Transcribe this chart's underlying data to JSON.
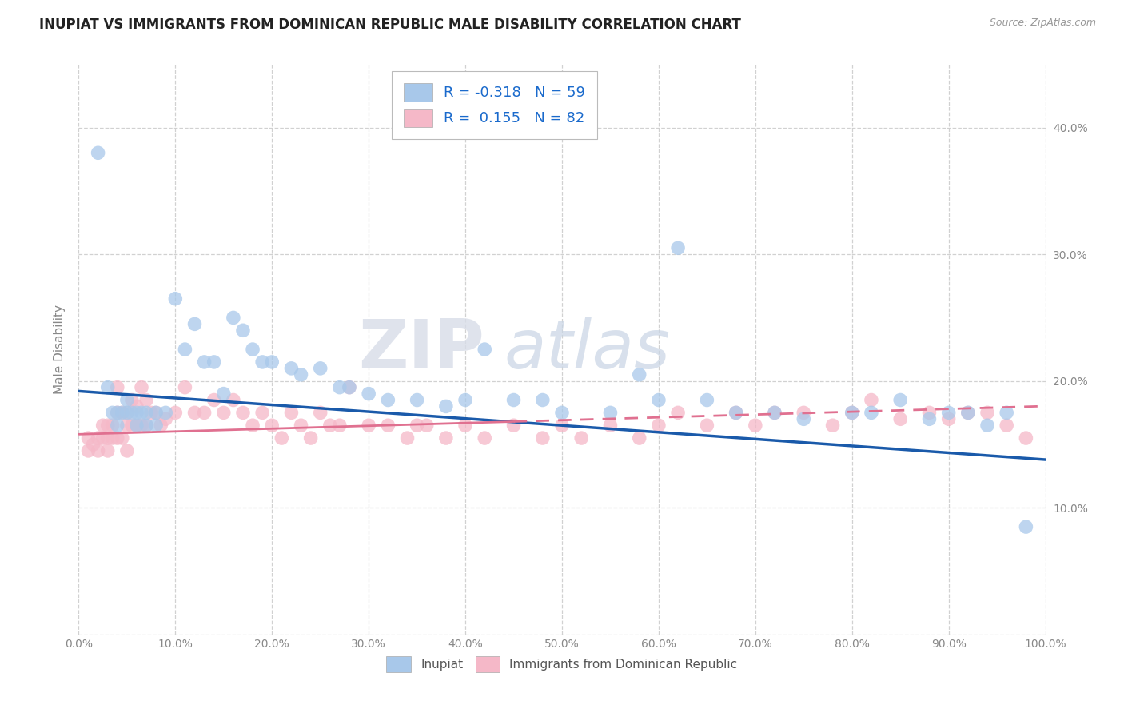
{
  "title": "INUPIAT VS IMMIGRANTS FROM DOMINICAN REPUBLIC MALE DISABILITY CORRELATION CHART",
  "source": "Source: ZipAtlas.com",
  "ylabel": "Male Disability",
  "legend_labels": [
    "Inupiat",
    "Immigrants from Dominican Republic"
  ],
  "blue_R": -0.318,
  "blue_N": 59,
  "pink_R": 0.155,
  "pink_N": 82,
  "blue_color": "#a8c8ea",
  "pink_color": "#f5b8c8",
  "blue_line_color": "#1a5aaa",
  "pink_line_color": "#e07090",
  "text_color_blue": "#1a6acc",
  "text_color_dark": "#333333",
  "xlim": [
    0.0,
    1.0
  ],
  "ylim": [
    0.0,
    0.45
  ],
  "xticks": [
    0.0,
    0.1,
    0.2,
    0.3,
    0.4,
    0.5,
    0.6,
    0.7,
    0.8,
    0.9,
    1.0
  ],
  "yticks": [
    0.0,
    0.1,
    0.2,
    0.3,
    0.4
  ],
  "ytick_labels": [
    "",
    "10.0%",
    "20.0%",
    "30.0%",
    "40.0%"
  ],
  "xtick_labels": [
    "0.0%",
    "10.0%",
    "20.0%",
    "30.0%",
    "40.0%",
    "50.0%",
    "60.0%",
    "70.0%",
    "80.0%",
    "90.0%",
    "100.0%"
  ],
  "blue_line_x0": 0.0,
  "blue_line_y0": 0.192,
  "blue_line_x1": 1.0,
  "blue_line_y1": 0.138,
  "pink_line_x0": 0.0,
  "pink_line_y0": 0.158,
  "pink_line_x1": 0.45,
  "pink_line_y1": 0.168,
  "blue_scatter_x": [
    0.02,
    0.03,
    0.035,
    0.04,
    0.04,
    0.045,
    0.05,
    0.05,
    0.055,
    0.06,
    0.06,
    0.065,
    0.07,
    0.07,
    0.08,
    0.08,
    0.09,
    0.1,
    0.11,
    0.12,
    0.13,
    0.14,
    0.15,
    0.16,
    0.17,
    0.18,
    0.19,
    0.2,
    0.22,
    0.23,
    0.25,
    0.27,
    0.28,
    0.3,
    0.32,
    0.35,
    0.38,
    0.4,
    0.42,
    0.45,
    0.48,
    0.5,
    0.55,
    0.58,
    0.6,
    0.62,
    0.65,
    0.68,
    0.72,
    0.75,
    0.8,
    0.82,
    0.85,
    0.88,
    0.9,
    0.92,
    0.94,
    0.96,
    0.98
  ],
  "blue_scatter_y": [
    0.38,
    0.195,
    0.175,
    0.175,
    0.165,
    0.175,
    0.175,
    0.185,
    0.175,
    0.175,
    0.165,
    0.175,
    0.175,
    0.165,
    0.175,
    0.165,
    0.175,
    0.265,
    0.225,
    0.245,
    0.215,
    0.215,
    0.19,
    0.25,
    0.24,
    0.225,
    0.215,
    0.215,
    0.21,
    0.205,
    0.21,
    0.195,
    0.195,
    0.19,
    0.185,
    0.185,
    0.18,
    0.185,
    0.225,
    0.185,
    0.185,
    0.175,
    0.175,
    0.205,
    0.185,
    0.305,
    0.185,
    0.175,
    0.175,
    0.17,
    0.175,
    0.175,
    0.185,
    0.17,
    0.175,
    0.175,
    0.165,
    0.175,
    0.085
  ],
  "pink_scatter_x": [
    0.01,
    0.01,
    0.015,
    0.02,
    0.02,
    0.025,
    0.025,
    0.03,
    0.03,
    0.03,
    0.035,
    0.035,
    0.04,
    0.04,
    0.04,
    0.045,
    0.045,
    0.05,
    0.05,
    0.05,
    0.055,
    0.055,
    0.06,
    0.06,
    0.065,
    0.065,
    0.07,
    0.07,
    0.075,
    0.08,
    0.085,
    0.09,
    0.1,
    0.11,
    0.12,
    0.13,
    0.14,
    0.15,
    0.16,
    0.17,
    0.18,
    0.19,
    0.2,
    0.21,
    0.22,
    0.23,
    0.24,
    0.25,
    0.26,
    0.27,
    0.28,
    0.3,
    0.32,
    0.34,
    0.35,
    0.36,
    0.38,
    0.4,
    0.42,
    0.45,
    0.48,
    0.5,
    0.52,
    0.55,
    0.58,
    0.6,
    0.62,
    0.65,
    0.68,
    0.7,
    0.72,
    0.75,
    0.78,
    0.8,
    0.82,
    0.85,
    0.88,
    0.9,
    0.92,
    0.94,
    0.96,
    0.98
  ],
  "pink_scatter_y": [
    0.155,
    0.145,
    0.15,
    0.155,
    0.145,
    0.165,
    0.155,
    0.165,
    0.155,
    0.145,
    0.165,
    0.155,
    0.195,
    0.175,
    0.155,
    0.175,
    0.155,
    0.175,
    0.165,
    0.145,
    0.185,
    0.165,
    0.18,
    0.165,
    0.195,
    0.165,
    0.185,
    0.165,
    0.175,
    0.175,
    0.165,
    0.17,
    0.175,
    0.195,
    0.175,
    0.175,
    0.185,
    0.175,
    0.185,
    0.175,
    0.165,
    0.175,
    0.165,
    0.155,
    0.175,
    0.165,
    0.155,
    0.175,
    0.165,
    0.165,
    0.195,
    0.165,
    0.165,
    0.155,
    0.165,
    0.165,
    0.155,
    0.165,
    0.155,
    0.165,
    0.155,
    0.165,
    0.155,
    0.165,
    0.155,
    0.165,
    0.175,
    0.165,
    0.175,
    0.165,
    0.175,
    0.175,
    0.165,
    0.175,
    0.185,
    0.17,
    0.175,
    0.17,
    0.175,
    0.175,
    0.165,
    0.155
  ],
  "watermark_zip": "ZIP",
  "watermark_atlas": "atlas",
  "background_color": "#ffffff",
  "grid_color": "#cccccc",
  "tick_color": "#888888"
}
